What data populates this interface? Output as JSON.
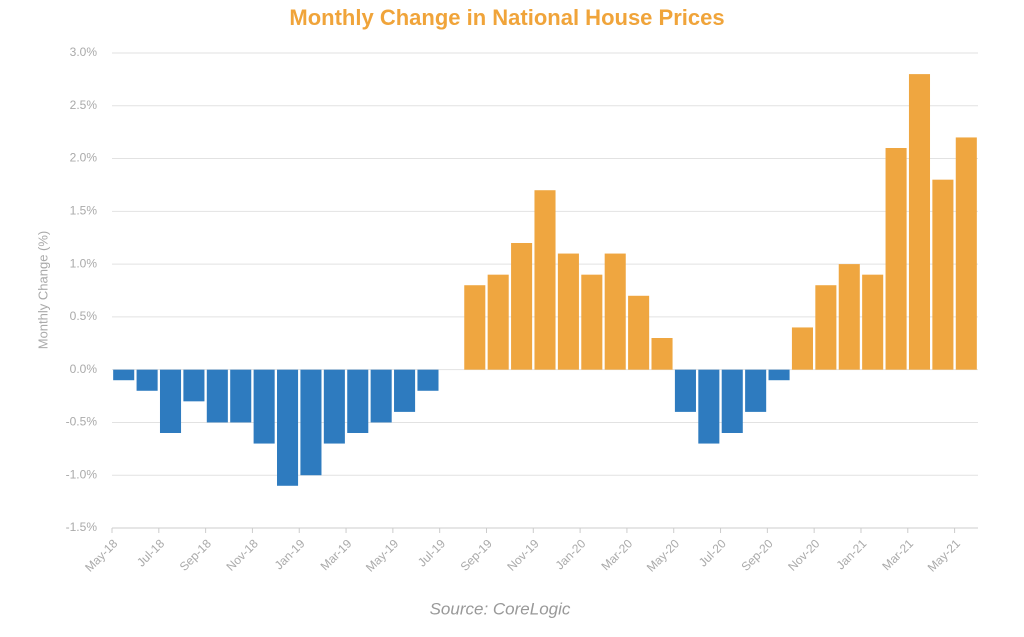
{
  "chart_data": {
    "type": "bar",
    "title": "Monthly Change in National House Prices",
    "y_label": "Monthly Change (%)",
    "source": "Source: CoreLogic",
    "categories": [
      "May-18",
      null,
      "Jul-18",
      null,
      "Sep-18",
      null,
      "Nov-18",
      null,
      "Jan-19",
      null,
      "Mar-19",
      null,
      "May-19",
      null,
      "Jul-19",
      null,
      "Sep-19",
      null,
      "Nov-19",
      null,
      "Jan-20",
      null,
      "Mar-20",
      null,
      "May-20",
      null,
      "Jul-20",
      null,
      "Sep-20",
      null,
      "Nov-20",
      null,
      "Jan-21",
      null,
      "Mar-21",
      null,
      "May-21"
    ],
    "values": [
      -0.1,
      -0.2,
      -0.6,
      -0.3,
      -0.5,
      -0.5,
      -0.7,
      -1.1,
      -1.0,
      -0.7,
      -0.6,
      -0.5,
      -0.4,
      -0.2,
      0,
      0.8,
      0.9,
      1.2,
      1.7,
      1.1,
      0.9,
      1.1,
      0.7,
      0.3,
      -0.4,
      -0.7,
      -0.6,
      -0.4,
      -0.1,
      0.4,
      0.8,
      1.0,
      0.9,
      2.1,
      2.8,
      1.8,
      2.2
    ],
    "color_positive": "#efa640",
    "color_negative": "#2e7bbf",
    "ylim": [
      -1.5,
      3.0
    ],
    "yticks": [
      {
        "value": -1.5,
        "label": "-1.5%"
      },
      {
        "value": -1.0,
        "label": "-1.0%"
      },
      {
        "value": -0.5,
        "label": "-0.5%"
      },
      {
        "value": 0,
        "label": "0.0%"
      },
      {
        "value": 0.5,
        "label": "0.5%"
      },
      {
        "value": 1.0,
        "label": "1.0%"
      },
      {
        "value": 1.5,
        "label": "1.5%"
      },
      {
        "value": 2.0,
        "label": "2.0%"
      },
      {
        "value": 2.5,
        "label": "2.5%"
      },
      {
        "value": 3.0,
        "label": "3.0%"
      }
    ],
    "grid": true
  }
}
